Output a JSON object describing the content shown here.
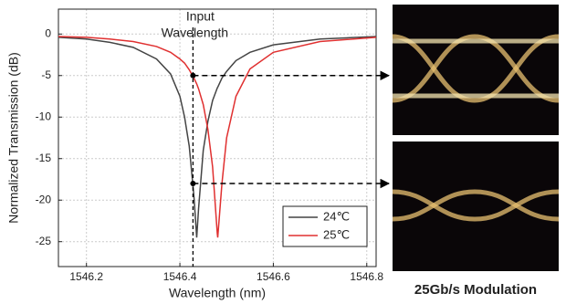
{
  "chart_data": {
    "type": "line",
    "x_label": "Wavelength (nm)",
    "y_label": "Normalized Transmission (dB)",
    "annotation": [
      "Input",
      "Wavelength"
    ],
    "caption": "25Gb/s Modulation",
    "input_wavelength": 1546.428,
    "marker_values": [
      -5,
      -18
    ],
    "xlim": [
      1546.14,
      1546.82
    ],
    "xticks": [
      1546.2,
      1546.4,
      1546.6,
      1546.8
    ],
    "ylim": [
      -28,
      3
    ],
    "yticks": [
      0,
      -5,
      -10,
      -15,
      -20,
      -25
    ],
    "grid": true,
    "legend": "lower right",
    "x": [
      1546.14,
      1546.2,
      1546.25,
      1546.3,
      1546.35,
      1546.38,
      1546.4,
      1546.41,
      1546.42,
      1546.43,
      1546.436,
      1546.44,
      1546.45,
      1546.46,
      1546.47,
      1546.48,
      1546.481,
      1546.49,
      1546.5,
      1546.52,
      1546.55,
      1546.6,
      1546.7,
      1546.82
    ],
    "series": [
      {
        "name": "24℃",
        "color": "#444444",
        "values": [
          -0.4,
          -0.6,
          -1.0,
          -1.6,
          -3.0,
          -4.8,
          -7.5,
          -10,
          -13.5,
          -19.5,
          -24.5,
          -21,
          -14,
          -10.5,
          -8,
          -6.5,
          -6.4,
          -5.3,
          -4.5,
          -3.2,
          -2.2,
          -1.3,
          -0.6,
          -0.3
        ]
      },
      {
        "name": "25℃",
        "color": "#e03030",
        "values": [
          -0.3,
          -0.4,
          -0.6,
          -0.9,
          -1.5,
          -2.2,
          -3.0,
          -3.5,
          -4.3,
          -5.3,
          -6,
          -6.6,
          -8.5,
          -11.5,
          -16,
          -24,
          -24.5,
          -18,
          -12.5,
          -7.5,
          -4.2,
          -2.2,
          -0.9,
          -0.4
        ]
      }
    ]
  }
}
